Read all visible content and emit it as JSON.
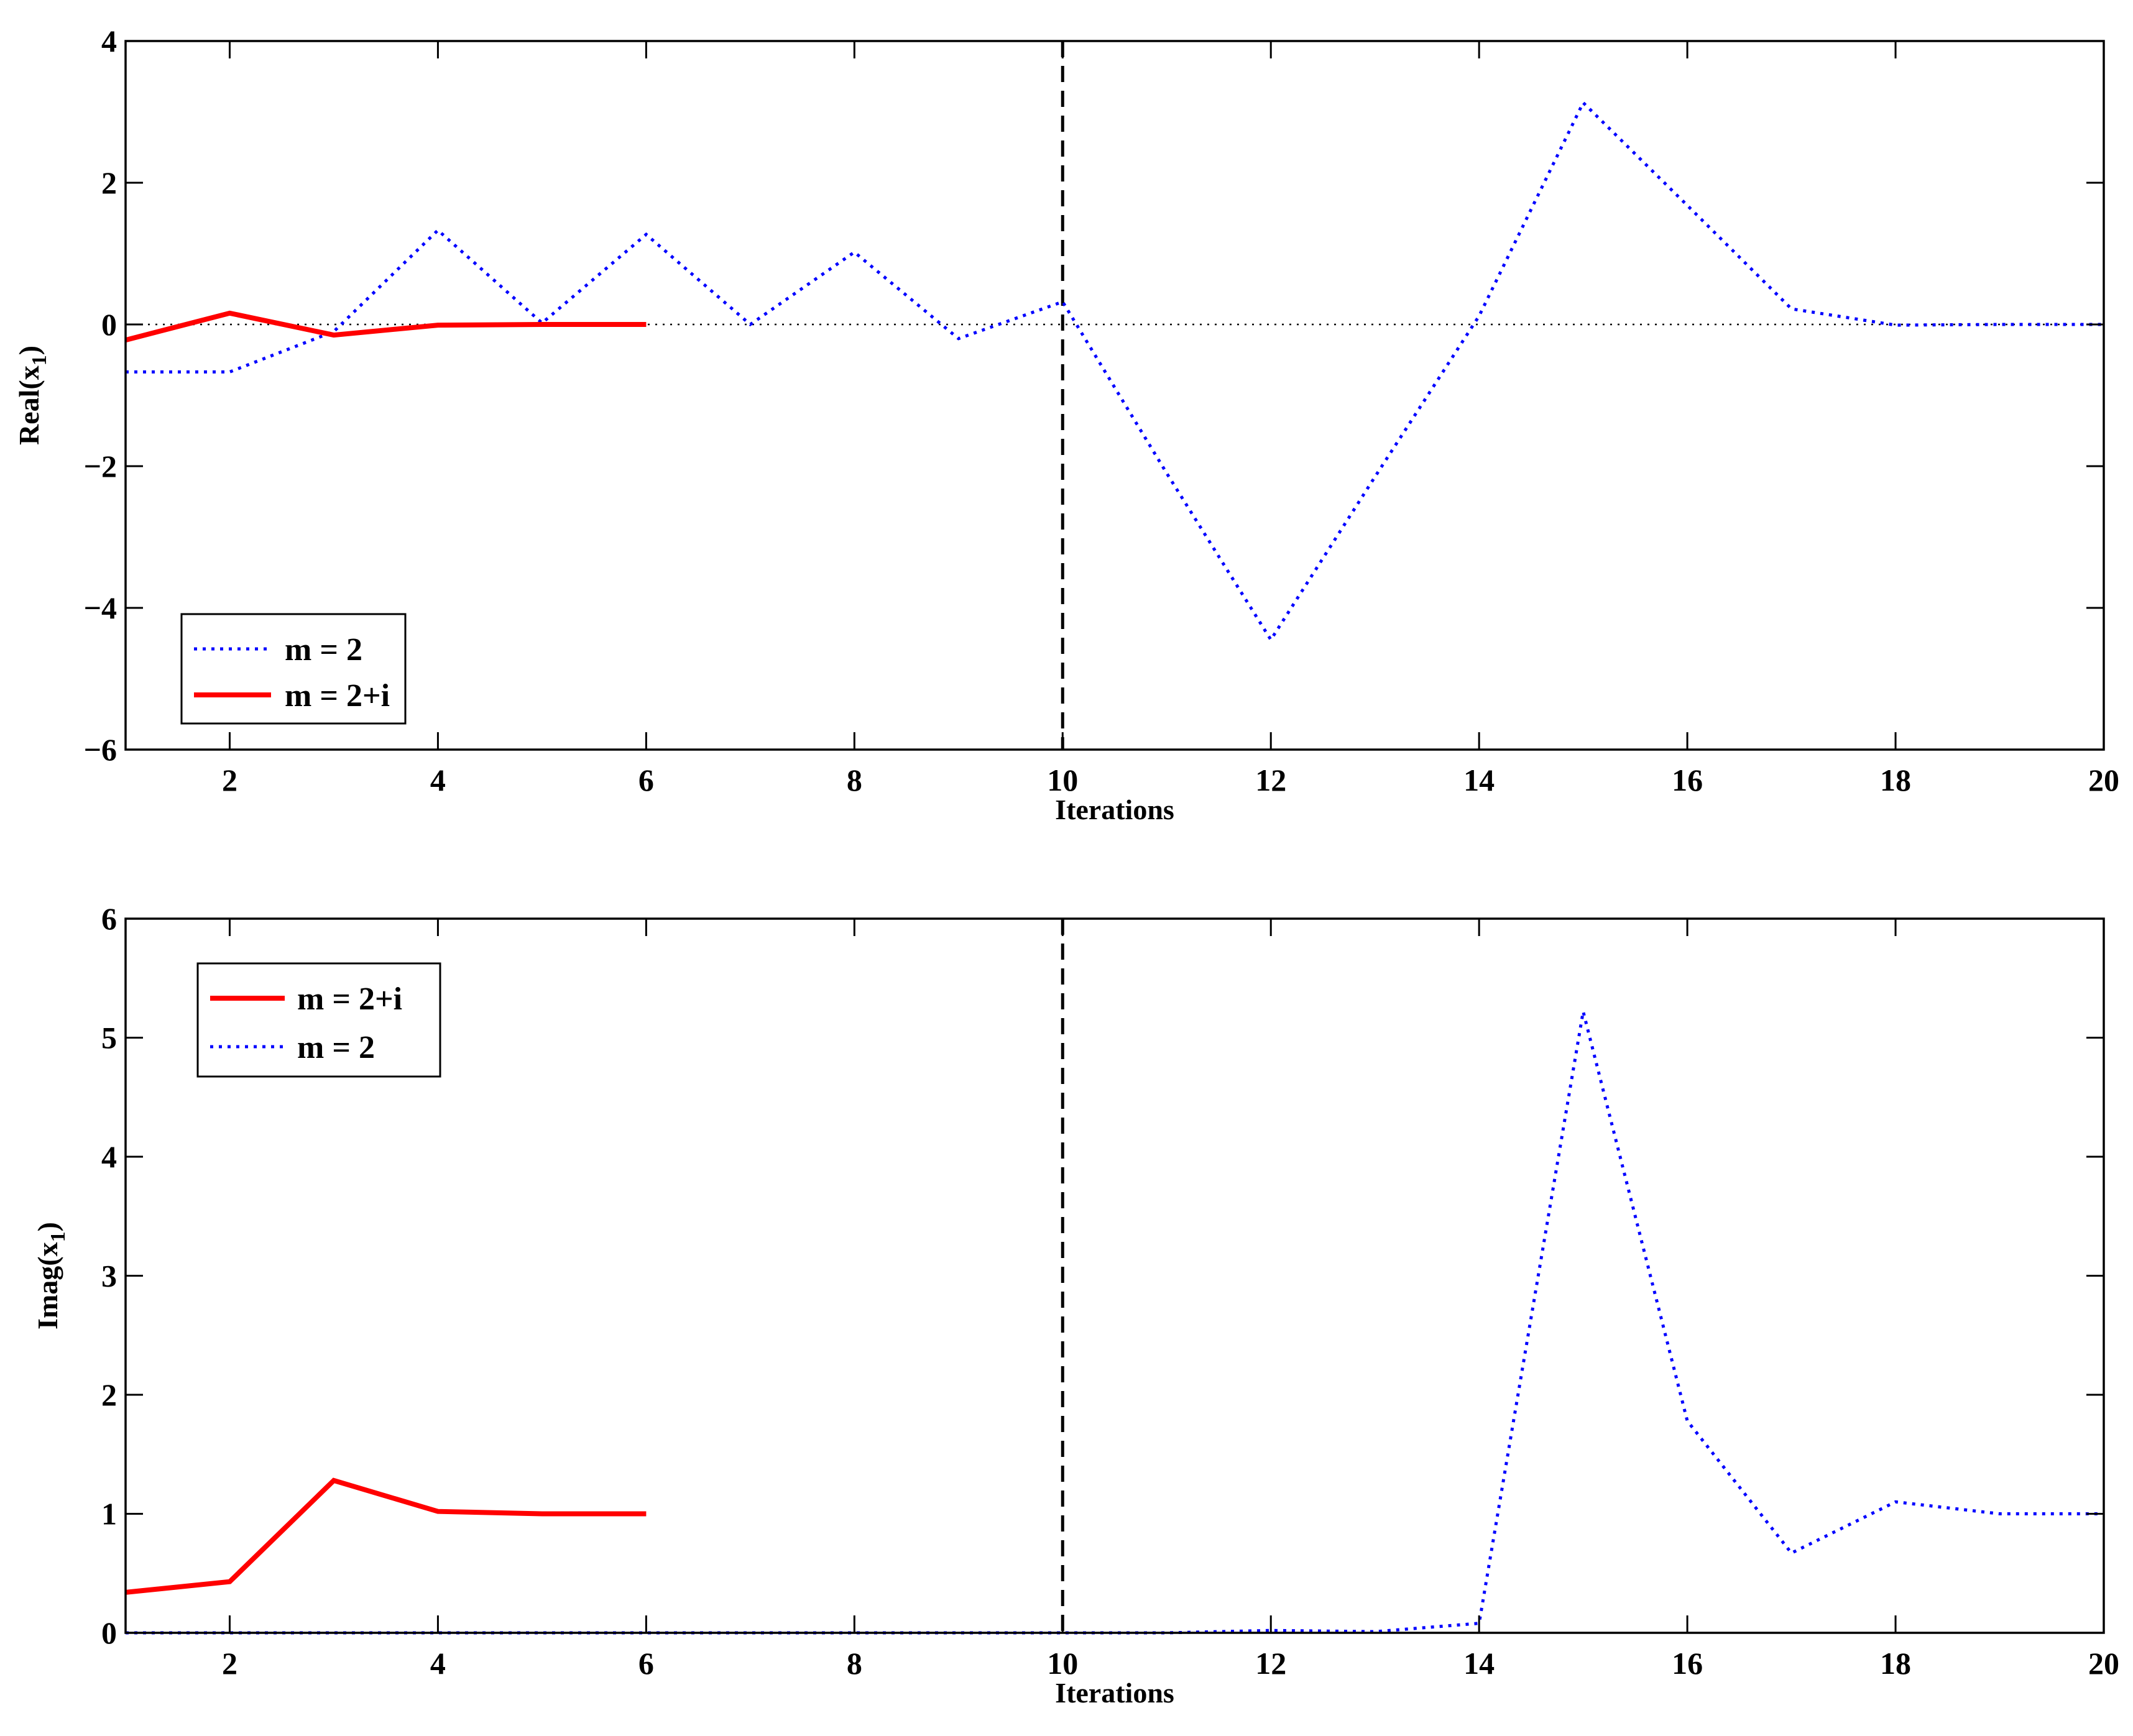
{
  "chart_data": [
    {
      "type": "line",
      "xlabel": "Iterations",
      "ylabel": "Real(x",
      "ylabel_sub": "1",
      "ylabel_close": ")",
      "xlim": [
        1,
        20
      ],
      "ylim": [
        -6,
        4
      ],
      "xticks": [
        2,
        4,
        6,
        8,
        10,
        12,
        14,
        16,
        18,
        20
      ],
      "yticks": [
        -6,
        -4,
        -2,
        0,
        2,
        4
      ],
      "ytick_labels": [
        "−6",
        "−4",
        "−2",
        "0",
        "2",
        "4"
      ],
      "vline": 10,
      "zero_line": true,
      "legend": "bottom-left",
      "series": [
        {
          "name": "m = 2",
          "color": "#0000ff",
          "style": "dotted",
          "x": [
            1,
            2,
            3,
            4,
            5,
            6,
            7,
            8,
            9,
            10,
            11,
            12,
            13,
            14,
            15,
            16,
            17,
            18,
            19,
            20
          ],
          "y": [
            -0.67,
            -0.67,
            -0.1,
            1.33,
            0.02,
            1.27,
            0.0,
            1.02,
            -0.2,
            0.32,
            -2.1,
            -4.45,
            -2.15,
            0.12,
            3.13,
            1.68,
            0.22,
            -0.01,
            0.0,
            0.0
          ]
        },
        {
          "name": "m = 2+i",
          "color": "#ff0000",
          "style": "solid",
          "x": [
            1,
            2,
            3,
            4,
            5,
            6
          ],
          "y": [
            -0.22,
            0.16,
            -0.15,
            -0.01,
            0.0,
            0.0
          ]
        }
      ]
    },
    {
      "type": "line",
      "xlabel": "Iterations",
      "ylabel": "Imag(x",
      "ylabel_sub": "1",
      "ylabel_close": ")",
      "xlim": [
        1,
        20
      ],
      "ylim": [
        0,
        6
      ],
      "xticks": [
        2,
        4,
        6,
        8,
        10,
        12,
        14,
        16,
        18,
        20
      ],
      "yticks": [
        0,
        1,
        2,
        3,
        4,
        5,
        6
      ],
      "ytick_labels": [
        "0",
        "1",
        "2",
        "3",
        "4",
        "5",
        "6"
      ],
      "vline": 10,
      "zero_line": false,
      "legend": "top-left",
      "series": [
        {
          "name": "m = 2+i",
          "color": "#ff0000",
          "style": "solid",
          "x": [
            1,
            2,
            3,
            4,
            5,
            6
          ],
          "y": [
            0.34,
            0.43,
            1.28,
            1.02,
            1.0,
            1.0
          ]
        },
        {
          "name": "m = 2",
          "color": "#0000ff",
          "style": "dotted",
          "x": [
            1,
            2,
            3,
            4,
            5,
            6,
            7,
            8,
            9,
            10,
            11,
            12,
            13,
            14,
            15,
            16,
            17,
            18,
            19,
            20
          ],
          "y": [
            0,
            0,
            0,
            0,
            0,
            0,
            0,
            0,
            0,
            0,
            0,
            0.02,
            0.01,
            0.08,
            5.22,
            1.78,
            0.67,
            1.1,
            1.0,
            1.0
          ]
        }
      ]
    }
  ]
}
